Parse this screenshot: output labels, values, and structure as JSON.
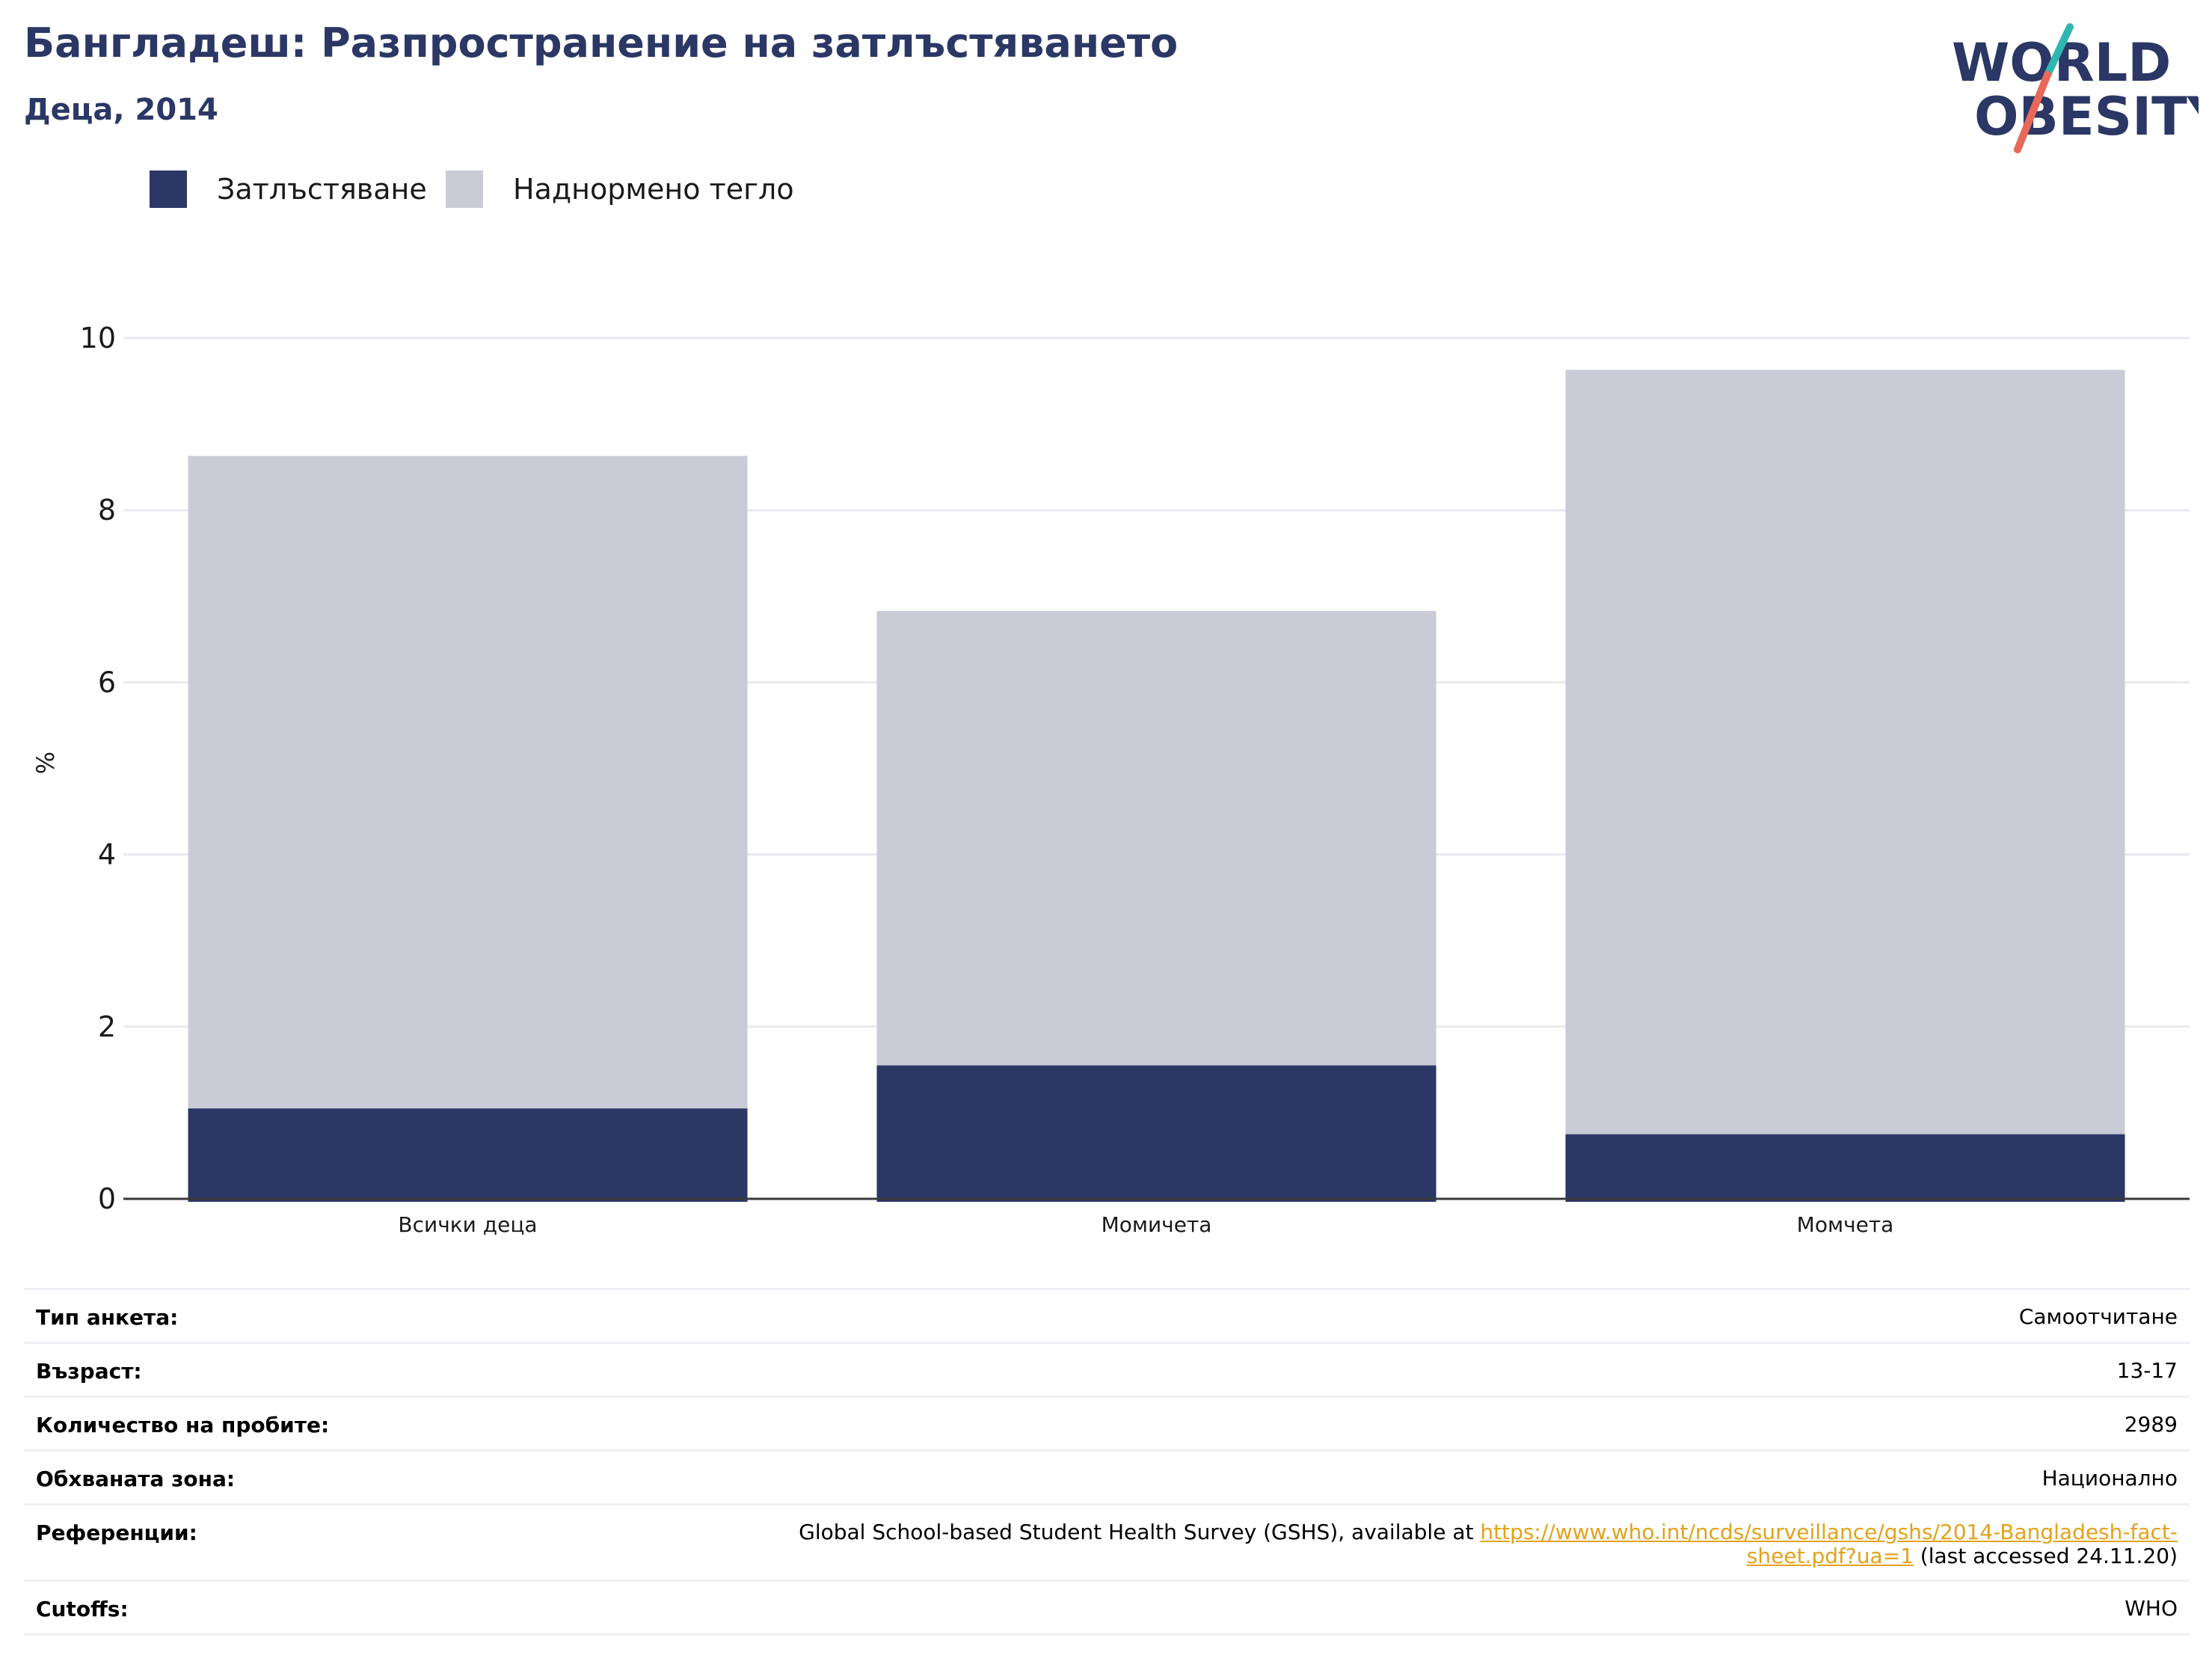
{
  "header": {
    "title": "Бангладеш: Разпространение на затлъстяването",
    "subtitle": "Деца, 2014"
  },
  "logo": {
    "line1": "WORLD",
    "line2": "OBESITY",
    "colors": {
      "text": "#2b3765",
      "slash_top": "#2fb6b0",
      "slash_bottom": "#e8685a"
    }
  },
  "legend": [
    {
      "label": "Затлъстяване",
      "color": "#2b3765"
    },
    {
      "label": "Наднормено тегло",
      "color": "#cacbd7"
    }
  ],
  "chart_data": {
    "type": "bar",
    "stacked": false,
    "overlay": true,
    "categories": [
      "Всички деца",
      "Момичета",
      "Момчета"
    ],
    "series": [
      {
        "name": "Наднормено тегло",
        "color": "#cacbd7",
        "values": [
          8.63,
          6.83,
          9.63
        ]
      },
      {
        "name": "Затлъстяване",
        "color": "#2b3765",
        "values": [
          1.05,
          1.55,
          0.75
        ]
      }
    ],
    "ylabel": "%",
    "ylim": [
      0,
      10
    ],
    "yticks": [
      0,
      2,
      4,
      6,
      8,
      10
    ],
    "grid": true,
    "legend_position": "top-left"
  },
  "info": {
    "rows": [
      {
        "key": "Тип анкета:",
        "value": "Самоотчитане"
      },
      {
        "key": "Възраст:",
        "value": "13-17"
      },
      {
        "key": "Количество на пробите:",
        "value": "2989"
      },
      {
        "key": "Обхваната зона:",
        "value": "Национално"
      }
    ],
    "reference": {
      "key": "Референции:",
      "prefix": "Global School-based Student Health Survey (GSHS), available at ",
      "link_line1": "https://www.who.int/ncds/surveillance/gshs/2014-Bangladesh-fact-",
      "link_line2": "sheet.pdf?ua=1",
      "suffix": " (last accessed 24.11.20)",
      "link_color": "#e3a21a"
    },
    "cutoffs": {
      "key": "Cutoffs:",
      "value": "WHO"
    }
  }
}
